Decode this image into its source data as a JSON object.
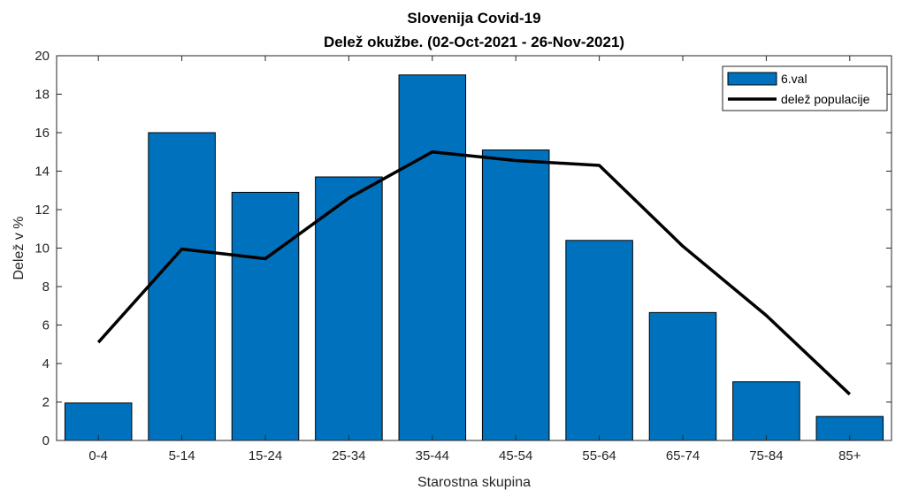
{
  "chart_data": {
    "type": "bar",
    "title_lines": [
      "Slovenija Covid-19",
      "Delež okužbe. (02-Oct-2021 - 26-Nov-2021)"
    ],
    "xlabel": "Starostna skupina",
    "ylabel": "Delež v %",
    "categories": [
      "0-4",
      "5-14",
      "15-24",
      "25-34",
      "35-44",
      "45-54",
      "55-64",
      "65-74",
      "75-84",
      "85+"
    ],
    "ylim": [
      0,
      20
    ],
    "yticks": [
      0,
      2,
      4,
      6,
      8,
      10,
      12,
      14,
      16,
      18,
      20
    ],
    "grid": false,
    "legend_position": "top-right",
    "series": [
      {
        "name": "6.val",
        "kind": "bar",
        "color": "#0072BD",
        "values": [
          1.95,
          16.0,
          12.9,
          13.7,
          19.0,
          15.1,
          10.4,
          6.65,
          3.05,
          1.25
        ]
      },
      {
        "name": "delež populacije",
        "kind": "line",
        "color": "#000000",
        "values": [
          5.1,
          9.95,
          9.45,
          12.6,
          15.0,
          14.55,
          14.3,
          10.1,
          6.5,
          2.4
        ]
      }
    ]
  }
}
